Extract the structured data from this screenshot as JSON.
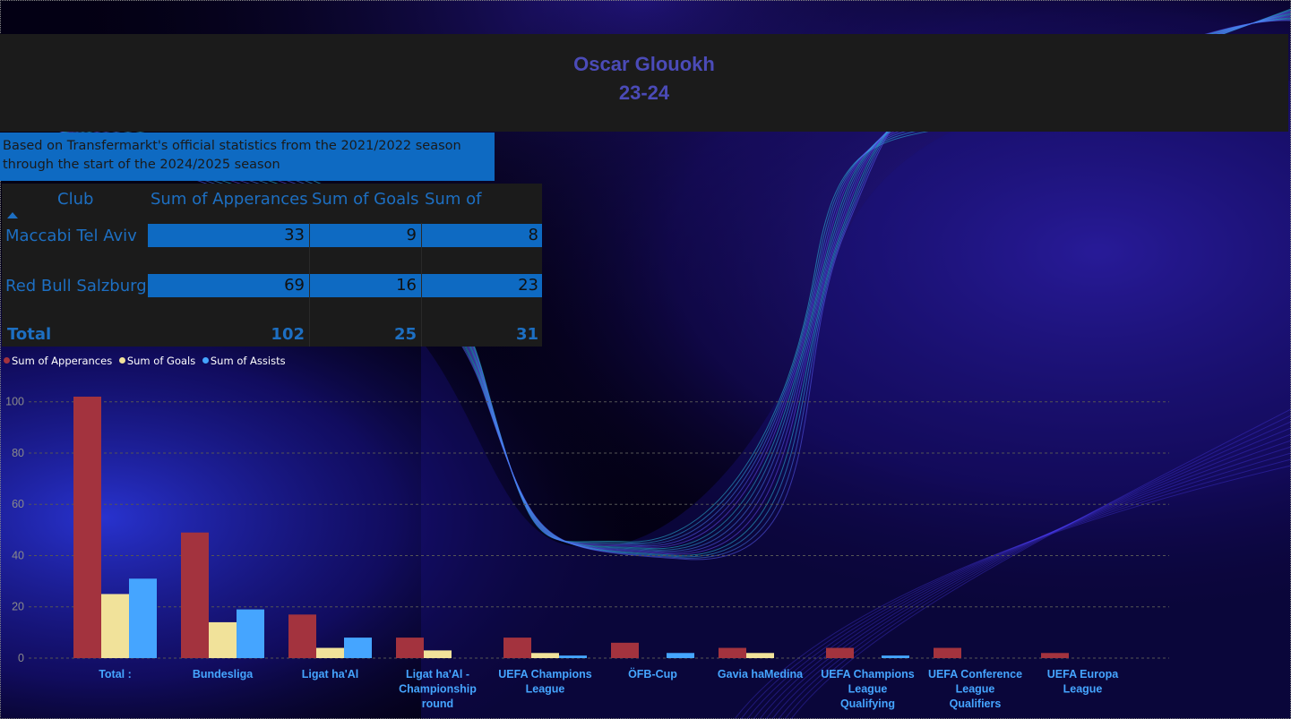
{
  "report": {
    "player_name": "Oscar Glouokh",
    "season": "23-24",
    "source_note": "Based on Transfermarkt's official statistics from the 2021/2022 season through the start of the 2024/2025 season"
  },
  "table": {
    "headers": [
      "Club",
      "Sum of Apperances",
      "Sum of Goals",
      "Sum of Assists"
    ],
    "rows": [
      {
        "club": "Maccabi Tel Aviv",
        "appearances": "33",
        "goals": "9",
        "assists": "8"
      },
      {
        "club": "Red Bull Salzburg",
        "appearances": "69",
        "goals": "16",
        "assists": "23"
      }
    ],
    "total": {
      "label": "Total",
      "appearances": "102",
      "goals": "25",
      "assists": "31"
    },
    "sort_icon": "sort-ascending-icon",
    "colors": {
      "header_text": "#1d6fc2",
      "row_bar": "#0e6ac2",
      "background": "#1b1b1b"
    }
  },
  "chart_data": {
    "type": "bar",
    "categories": [
      "Total :",
      "Bundesliga",
      "Ligat ha'Al",
      "Ligat ha'Al - Championship round",
      "UEFA Champions League",
      "ÖFB-Cup",
      "Gavia haMedina",
      "UEFA Champions League Qualifying",
      "UEFA Conference League Qualifiers",
      "UEFA Europa League"
    ],
    "series": [
      {
        "name": "Sum of Apperances",
        "color": "#a3333e",
        "values": [
          102,
          49,
          17,
          8,
          8,
          6,
          4,
          4,
          4,
          2
        ]
      },
      {
        "name": "Sum of Goals",
        "color": "#f1e29a",
        "values": [
          25,
          14,
          4,
          3,
          2,
          0,
          2,
          0,
          0,
          0
        ]
      },
      {
        "name": "Sum of Assists",
        "color": "#45a5ff",
        "values": [
          31,
          19,
          8,
          0,
          1,
          2,
          0,
          1,
          0,
          0
        ]
      }
    ],
    "y_ticks": [
      "0",
      "20",
      "40",
      "60",
      "80",
      "100"
    ],
    "ylim": [
      0,
      102
    ],
    "grid": true,
    "legend_position": "top-left",
    "category_label_color": "#45a5ff"
  }
}
